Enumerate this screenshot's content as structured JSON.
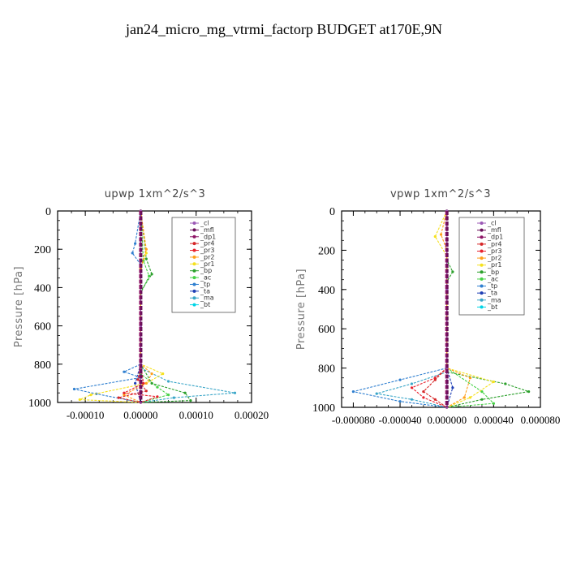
{
  "figure": {
    "title": "jan24_micro_mg_vtrmi_factorp  BUDGET at170E,9N"
  },
  "colors": {
    "_cl": "#9b59b6",
    "_mfl": "#6a0f5a",
    "_dp1": "#8e1466",
    "_pr4": "#d62728",
    "_pr3": "#e8222e",
    "_pr2": "#ff9f1a",
    "_pr1": "#f5e11f",
    "_bp": "#2ca02c",
    "_ac": "#46d246",
    "_tp": "#2f7fd0",
    "_ta": "#1f3fb5",
    "_ma": "#3aa6c8",
    "_bt": "#00d5e6"
  },
  "chart_data": [
    {
      "type": "line",
      "title": "upwp   1xm^2/s^3",
      "ylabel": "Pressure [hPa]",
      "xlabel": "",
      "xlim": [
        -0.00015,
        0.0002
      ],
      "ylim": [
        1000,
        0
      ],
      "xticks": [
        -0.0001,
        0,
        0.0001,
        0.0002
      ],
      "xtick_labels": [
        "-0.00010",
        "0.00000",
        "0.00010",
        "0.00020"
      ],
      "yticks": [
        0,
        200,
        400,
        600,
        800,
        1000
      ],
      "ytick_labels": [
        "0",
        "200",
        "400",
        "600",
        "800",
        "1000"
      ],
      "legend_position": "top-right",
      "series": [
        {
          "name": "_cl",
          "points": [
            [
              0,
              0
            ],
            [
              0,
              200
            ],
            [
              0,
              400
            ],
            [
              0,
              600
            ],
            [
              0,
              800
            ],
            [
              0,
              1000
            ]
          ]
        },
        {
          "name": "_mfl",
          "points": [
            [
              0,
              0
            ],
            [
              0,
              200
            ],
            [
              0,
              400
            ],
            [
              0,
              600
            ],
            [
              0,
              800
            ],
            [
              0,
              1000
            ]
          ]
        },
        {
          "name": "_dp1",
          "points": [
            [
              0,
              0
            ],
            [
              0,
              200
            ],
            [
              0,
              400
            ],
            [
              0,
              600
            ],
            [
              0,
              800
            ],
            [
              0,
              1000
            ]
          ]
        },
        {
          "name": "_pr4",
          "points": [
            [
              0,
              0
            ],
            [
              0,
              800
            ],
            [
              -5e-06,
              880
            ],
            [
              1e-05,
              940
            ],
            [
              -4e-05,
              975
            ],
            [
              0,
              1000
            ]
          ]
        },
        {
          "name": "_pr3",
          "points": [
            [
              0,
              0
            ],
            [
              0,
              800
            ],
            [
              5e-06,
              900
            ],
            [
              -3e-05,
              950
            ],
            [
              3e-05,
              970
            ],
            [
              0,
              1000
            ]
          ]
        },
        {
          "name": "_pr2",
          "points": [
            [
              0,
              0
            ],
            [
              1e-05,
              200
            ],
            [
              0,
              300
            ],
            [
              0,
              800
            ],
            [
              2e-05,
              850
            ],
            [
              1e-05,
              900
            ],
            [
              -3e-05,
              960
            ],
            [
              0,
              1000
            ]
          ]
        },
        {
          "name": "_pr1",
          "points": [
            [
              0,
              0
            ],
            [
              1e-05,
              220
            ],
            [
              0,
              300
            ],
            [
              0,
              800
            ],
            [
              4e-05,
              850
            ],
            [
              1e-05,
              900
            ],
            [
              -9e-05,
              960
            ],
            [
              -0.00011,
              985
            ],
            [
              0,
              1000
            ]
          ]
        },
        {
          "name": "_bp",
          "points": [
            [
              0,
              0
            ],
            [
              1e-05,
              250
            ],
            [
              2e-05,
              330
            ],
            [
              0,
              420
            ],
            [
              0,
              800
            ],
            [
              2e-05,
              900
            ],
            [
              8e-05,
              950
            ],
            [
              9e-05,
              990
            ],
            [
              0,
              1000
            ]
          ]
        },
        {
          "name": "_ac",
          "points": [
            [
              0,
              0
            ],
            [
              5e-06,
              260
            ],
            [
              1.5e-05,
              340
            ],
            [
              0,
              430
            ],
            [
              0,
              850
            ],
            [
              3e-05,
              920
            ],
            [
              5e-05,
              960
            ],
            [
              0,
              1000
            ]
          ]
        },
        {
          "name": "_tp",
          "points": [
            [
              0,
              0
            ],
            [
              -1e-05,
              170
            ],
            [
              -1.5e-05,
              220
            ],
            [
              0,
              280
            ],
            [
              0,
              800
            ],
            [
              -3e-05,
              840
            ],
            [
              0,
              870
            ],
            [
              -0.00012,
              930
            ],
            [
              -8e-05,
              955
            ],
            [
              0,
              1000
            ]
          ]
        },
        {
          "name": "_ta",
          "points": [
            [
              0,
              0
            ],
            [
              0,
              400
            ],
            [
              0,
              800
            ],
            [
              -1e-05,
              900
            ],
            [
              0,
              1000
            ]
          ]
        },
        {
          "name": "_ma",
          "points": [
            [
              0,
              0
            ],
            [
              0,
              820
            ],
            [
              5e-05,
              890
            ],
            [
              0.00017,
              950
            ],
            [
              6e-05,
              975
            ],
            [
              0,
              1000
            ]
          ]
        },
        {
          "name": "_bt",
          "points": [
            [
              0,
              0
            ],
            [
              0,
              400
            ],
            [
              0,
              800
            ],
            [
              0,
              1000
            ]
          ]
        }
      ]
    },
    {
      "type": "line",
      "title": "vpwp   1xm^2/s^3",
      "ylabel": "Pressure [hPa]",
      "xlabel": "",
      "xlim": [
        -9e-05,
        8e-05
      ],
      "ylim": [
        1000,
        0
      ],
      "xticks": [
        -8e-05,
        -4e-05,
        0,
        4e-05,
        8e-05
      ],
      "xtick_labels": [
        "-0.000080",
        "-0.000040",
        "0.000000",
        "0.000040",
        "0.000080"
      ],
      "yticks": [
        0,
        200,
        400,
        600,
        800,
        1000
      ],
      "ytick_labels": [
        "0",
        "200",
        "400",
        "600",
        "800",
        "1000"
      ],
      "legend_position": "top-right",
      "series": [
        {
          "name": "_cl",
          "points": [
            [
              0,
              0
            ],
            [
              0,
              200
            ],
            [
              0,
              400
            ],
            [
              0,
              600
            ],
            [
              0,
              800
            ],
            [
              0,
              1000
            ]
          ]
        },
        {
          "name": "_mfl",
          "points": [
            [
              0,
              0
            ],
            [
              0,
              200
            ],
            [
              0,
              400
            ],
            [
              0,
              600
            ],
            [
              0,
              800
            ],
            [
              0,
              1000
            ]
          ]
        },
        {
          "name": "_dp1",
          "points": [
            [
              0,
              0
            ],
            [
              0,
              200
            ],
            [
              0,
              400
            ],
            [
              0,
              600
            ],
            [
              0,
              800
            ],
            [
              0,
              1000
            ]
          ]
        },
        {
          "name": "_pr4",
          "points": [
            [
              0,
              0
            ],
            [
              0,
              800
            ],
            [
              -1e-05,
              860
            ],
            [
              -2e-05,
              920
            ],
            [
              -1e-05,
              960
            ],
            [
              0,
              1000
            ]
          ]
        },
        {
          "name": "_pr3",
          "points": [
            [
              0,
              0
            ],
            [
              0,
              800
            ],
            [
              -1e-05,
              850
            ],
            [
              -3e-05,
              900
            ],
            [
              -2e-05,
              950
            ],
            [
              0,
              1000
            ]
          ]
        },
        {
          "name": "_pr2",
          "points": [
            [
              0,
              0
            ],
            [
              -5e-06,
              120
            ],
            [
              0,
              200
            ],
            [
              0,
              800
            ],
            [
              2e-05,
              850
            ],
            [
              1.5e-05,
              950
            ],
            [
              0,
              1000
            ]
          ]
        },
        {
          "name": "_pr1",
          "points": [
            [
              0,
              0
            ],
            [
              -1e-05,
              130
            ],
            [
              0,
              230
            ],
            [
              0,
              800
            ],
            [
              4e-05,
              870
            ],
            [
              2e-05,
              950
            ],
            [
              0,
              1000
            ]
          ]
        },
        {
          "name": "_bp",
          "points": [
            [
              0,
              0
            ],
            [
              0,
              250
            ],
            [
              5e-06,
              310
            ],
            [
              0,
              360
            ],
            [
              0,
              820
            ],
            [
              5e-05,
              880
            ],
            [
              7e-05,
              920
            ],
            [
              3e-05,
              960
            ],
            [
              0,
              1000
            ]
          ]
        },
        {
          "name": "_ac",
          "points": [
            [
              0,
              0
            ],
            [
              0,
              300
            ],
            [
              0,
              800
            ],
            [
              3e-05,
              920
            ],
            [
              4e-05,
              980
            ],
            [
              0,
              1000
            ]
          ]
        },
        {
          "name": "_tp",
          "points": [
            [
              0,
              0
            ],
            [
              0,
              200
            ],
            [
              0,
              800
            ],
            [
              -4e-05,
              860
            ],
            [
              -8e-05,
              920
            ],
            [
              -4e-05,
              970
            ],
            [
              0,
              1000
            ]
          ]
        },
        {
          "name": "_ta",
          "points": [
            [
              0,
              0
            ],
            [
              0,
              800
            ],
            [
              5e-06,
              900
            ],
            [
              0,
              1000
            ]
          ]
        },
        {
          "name": "_ma",
          "points": [
            [
              0,
              0
            ],
            [
              0,
              820
            ],
            [
              -3e-05,
              880
            ],
            [
              -6e-05,
              930
            ],
            [
              -3e-05,
              960
            ],
            [
              0,
              1000
            ]
          ]
        },
        {
          "name": "_bt",
          "points": [
            [
              0,
              0
            ],
            [
              0,
              400
            ],
            [
              0,
              800
            ],
            [
              0,
              1000
            ]
          ]
        }
      ]
    }
  ]
}
